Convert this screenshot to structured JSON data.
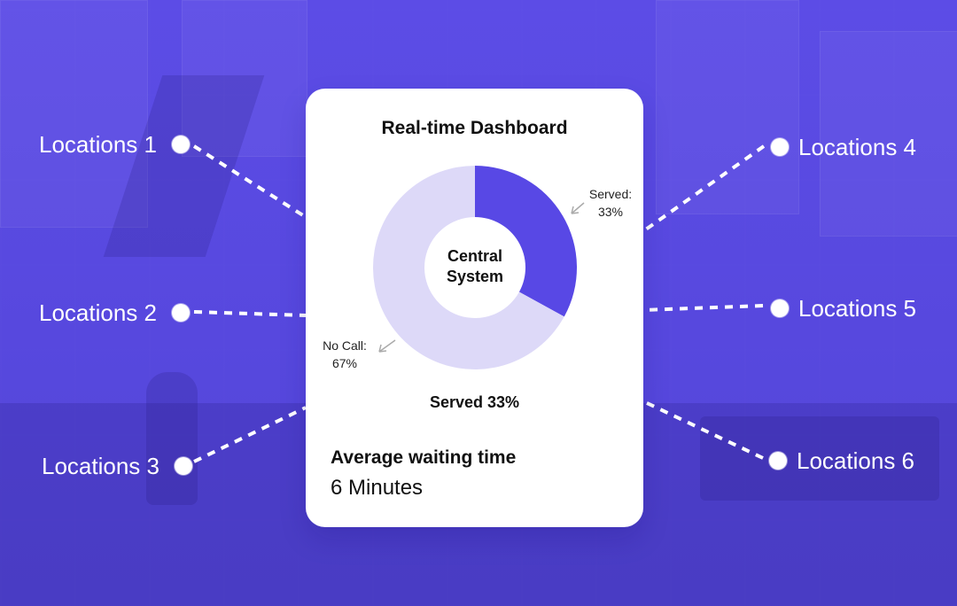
{
  "locations": [
    {
      "label": "Locations 1"
    },
    {
      "label": "Locations 2"
    },
    {
      "label": "Locations 3"
    },
    {
      "label": "Locations 4"
    },
    {
      "label": "Locations 5"
    },
    {
      "label": "Locations 6"
    }
  ],
  "dashboard": {
    "title": "Real-time Dashboard",
    "center_line_1": "Central",
    "center_line_2": "System",
    "served_label": "Served:",
    "served_value": "33%",
    "no_call_label": "No Call:",
    "no_call_value": "67%",
    "served_summary": "Served 33%",
    "avg_wait_label": "Average waiting time",
    "avg_wait_value": "6 Minutes"
  },
  "chart_data": {
    "type": "pie",
    "title": "",
    "series": [
      {
        "name": "Served",
        "value": 33,
        "color": "#5848e5"
      },
      {
        "name": "No Call",
        "value": 67,
        "color": "#ddd9f8"
      }
    ],
    "start_angle_deg": 0,
    "legend": "none",
    "grid": false,
    "donut": true
  },
  "colors": {
    "background": "#5b4ee6",
    "card": "#ffffff",
    "accent": "#5848e5",
    "muted_arc": "#ddd9f8",
    "connector": "#ffffff"
  }
}
